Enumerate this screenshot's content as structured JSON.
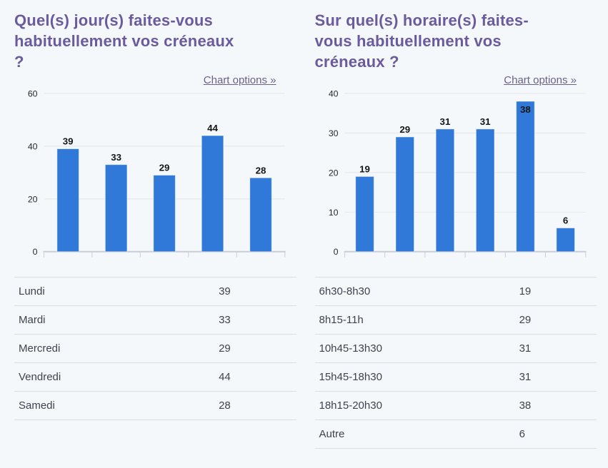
{
  "page": {
    "background": "#f4f8fb",
    "title_color": "#6b5b9e",
    "link_color": "#6a6189",
    "text_color": "#3e444d",
    "grid_color": "#e4e5e7",
    "axis_color": "#c9ced6"
  },
  "panels": [
    {
      "title": "Quel(s) jour(s) faites-vous\nhabituellement vos créneaux\n?",
      "options_label": "Chart options »"
    },
    {
      "title": "Sur quel(s) horaire(s) faites-\nvous habituellement vos\ncréneaux ?",
      "options_label": "Chart options »"
    }
  ],
  "chart_data": [
    {
      "type": "bar",
      "title": "Quel(s) jour(s) faites-vous habituellement vos créneaux ?",
      "categories": [
        "Lundi",
        "Mardi",
        "Mercredi",
        "Vendredi",
        "Samedi"
      ],
      "values": [
        39,
        33,
        29,
        44,
        28
      ],
      "xlabel": "",
      "ylabel": "",
      "ylim": [
        0,
        60
      ],
      "yticks": [
        0,
        20,
        40,
        60
      ],
      "grid": true,
      "legend": false,
      "bar_color": "#3079d8",
      "value_label_color": "#161616"
    },
    {
      "type": "bar",
      "title": "Sur quel(s) horaire(s) faites-vous habituellement vos créneaux ?",
      "categories": [
        "6h30-8h30",
        "8h15-11h",
        "10h45-13h30",
        "15h45-18h30",
        "18h15-20h30",
        "Autre"
      ],
      "values": [
        19,
        29,
        31,
        31,
        38,
        6
      ],
      "xlabel": "",
      "ylabel": "",
      "ylim": [
        0,
        40
      ],
      "yticks": [
        0,
        10,
        20,
        30,
        40
      ],
      "grid": true,
      "legend": false,
      "bar_color": "#3079d8",
      "value_label_color": "#161616"
    }
  ]
}
